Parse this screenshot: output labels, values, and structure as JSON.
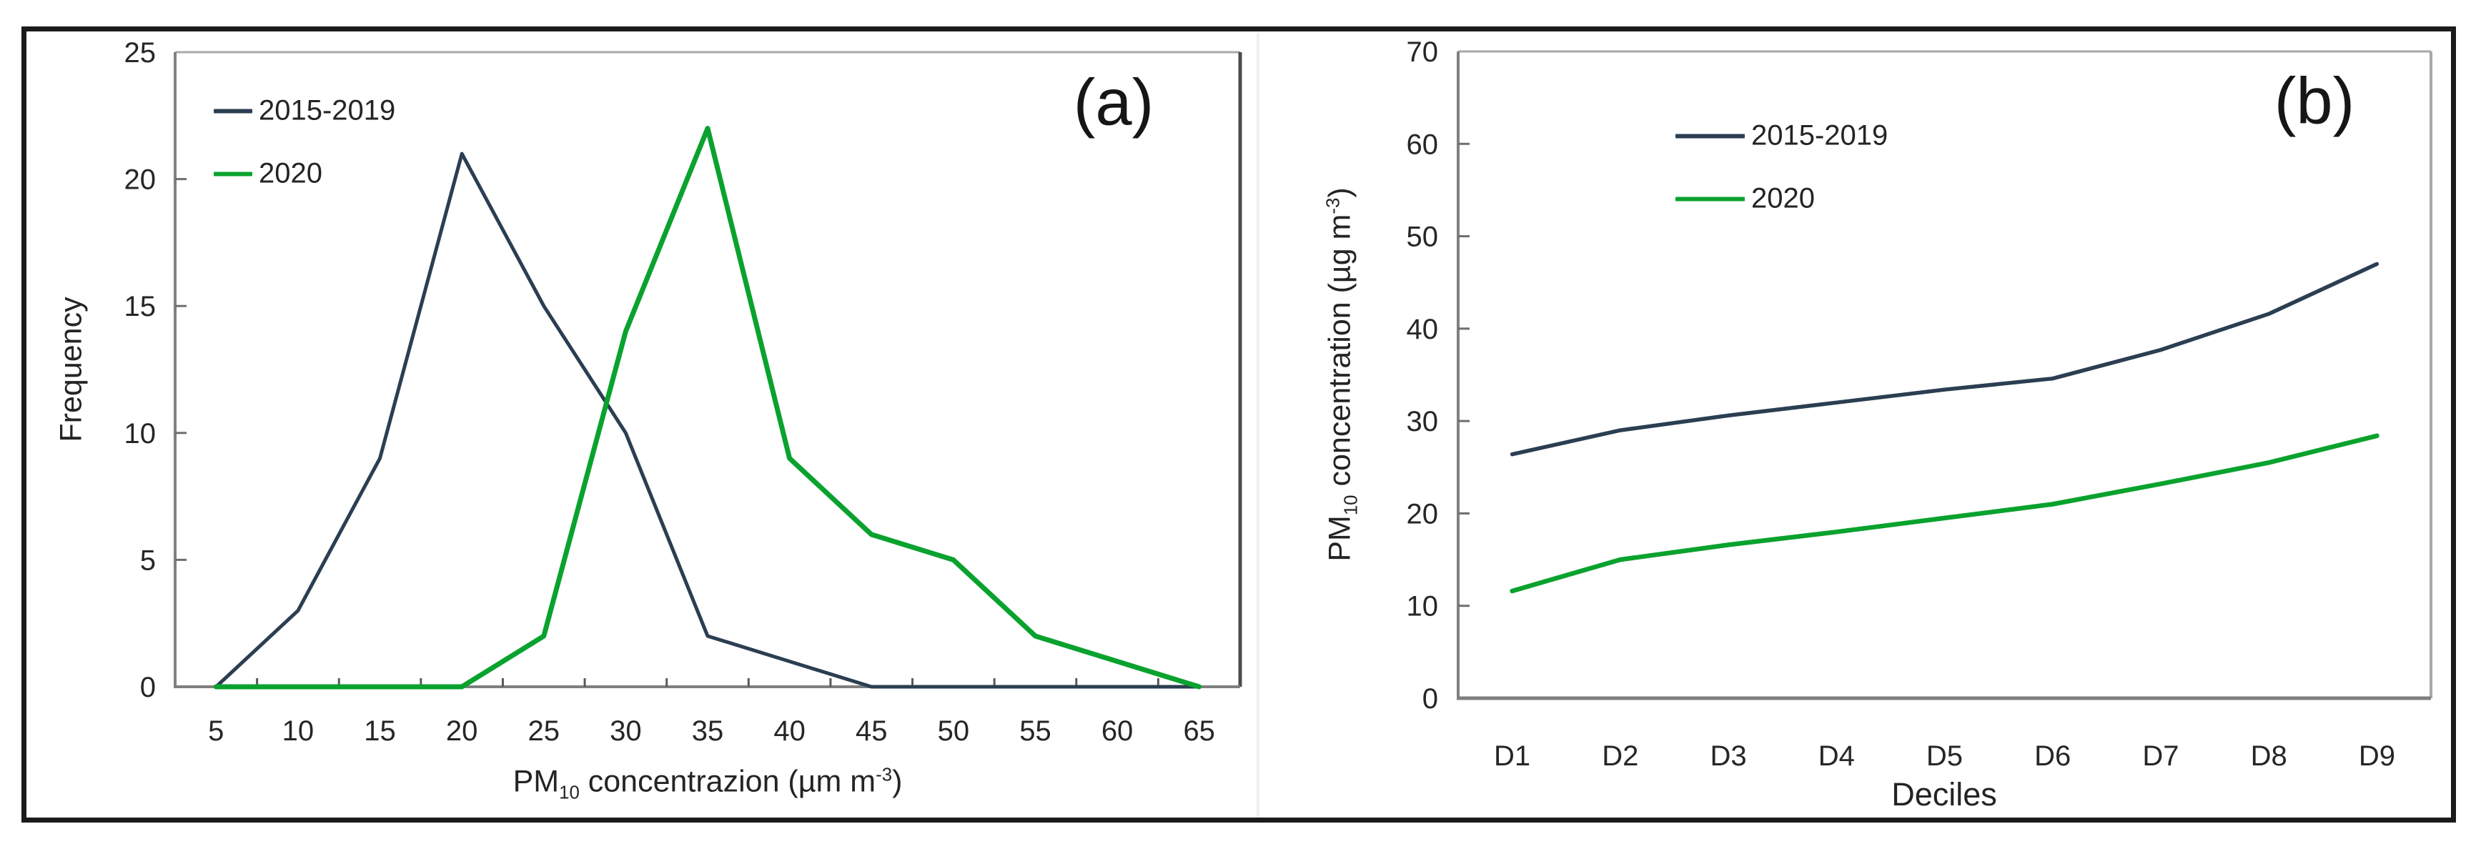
{
  "figure": {
    "panel_a": {
      "letter": "(a)",
      "ylabel": "Frequency",
      "xlabel": {
        "pm": "PM",
        "sub": "10",
        "mid": " concentrazion (µm m",
        "sup": "-3",
        "end": ")"
      },
      "legend": [
        {
          "label": "2015-2019",
          "color": "#2b3e52"
        },
        {
          "label": "2020",
          "color": "#0aa22e"
        }
      ]
    },
    "panel_b": {
      "letter": "(b)",
      "ylabel": {
        "pm": "PM",
        "sub": "10",
        "mid": " concentration (µg m",
        "sup": "-3",
        "end": ")"
      },
      "xlabel": "Deciles",
      "legend": [
        {
          "label": "2015-2019",
          "color": "#2b3e52"
        },
        {
          "label": "2020",
          "color": "#0aa22e"
        }
      ]
    }
  },
  "chart_data": [
    {
      "panel": "a",
      "type": "line",
      "title": "",
      "xlabel": "PM10 concentrazion (µm m-3)",
      "ylabel": "Frequency",
      "categories": [
        "5",
        "10",
        "15",
        "20",
        "25",
        "30",
        "35",
        "40",
        "45",
        "50",
        "55",
        "60",
        "65"
      ],
      "ylim": [
        0,
        25
      ],
      "yticks": [
        0,
        5,
        10,
        15,
        20,
        25
      ],
      "grid": false,
      "legend_position": "top-left",
      "series": [
        {
          "name": "2015-2019",
          "color": "#2b3e52",
          "values": [
            0,
            3,
            9,
            21,
            15,
            10,
            2,
            1,
            0,
            0,
            0,
            0,
            0
          ]
        },
        {
          "name": "2020",
          "color": "#0aa22e",
          "values": [
            0,
            0,
            0,
            0,
            2,
            14,
            22,
            9,
            6,
            5,
            2,
            1,
            0
          ]
        }
      ]
    },
    {
      "panel": "b",
      "type": "line",
      "title": "",
      "xlabel": "Deciles",
      "ylabel": "PM10 concentration (µg m-3)",
      "categories": [
        "D1",
        "D2",
        "D3",
        "D4",
        "D5",
        "D6",
        "D7",
        "D8",
        "D9"
      ],
      "ylim": [
        0,
        70
      ],
      "yticks": [
        0,
        10,
        20,
        30,
        40,
        50,
        60,
        70
      ],
      "grid": false,
      "legend_position": "top-left",
      "series": [
        {
          "name": "2015-2019",
          "color": "#2b3e52",
          "values": [
            26.4,
            29.0,
            30.6,
            32.0,
            33.4,
            34.6,
            37.7,
            41.6,
            47.0
          ]
        },
        {
          "name": "2020",
          "color": "#0aa22e",
          "values": [
            11.6,
            15.0,
            16.6,
            18.0,
            19.5,
            21.0,
            23.2,
            25.5,
            28.4
          ]
        }
      ]
    }
  ]
}
